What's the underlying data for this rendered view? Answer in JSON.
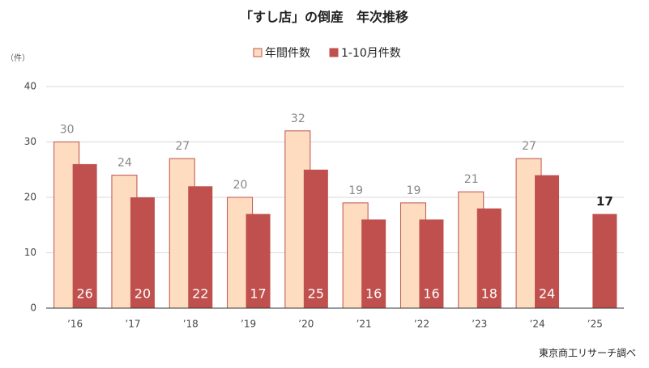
{
  "chart_data": {
    "type": "bar",
    "title": "「すし店」の倒産　年次推移",
    "y_unit": "（件）",
    "source": "東京商工リサーチ調べ",
    "categories": [
      "’16",
      "’17",
      "’18",
      "’19",
      "’20",
      "’21",
      "’22",
      "’23",
      "’24",
      "’25"
    ],
    "series": [
      {
        "name": "年間件数",
        "color": "#fddcc0",
        "values": [
          30,
          24,
          27,
          20,
          32,
          19,
          19,
          21,
          27,
          null
        ]
      },
      {
        "name": "1-10月件数",
        "color": "#c0504d",
        "values": [
          26,
          20,
          22,
          17,
          25,
          16,
          16,
          18,
          24,
          17
        ]
      }
    ],
    "ylim": [
      0,
      40
    ],
    "yticks": [
      0,
      10,
      20,
      30,
      40
    ],
    "grid": true
  }
}
